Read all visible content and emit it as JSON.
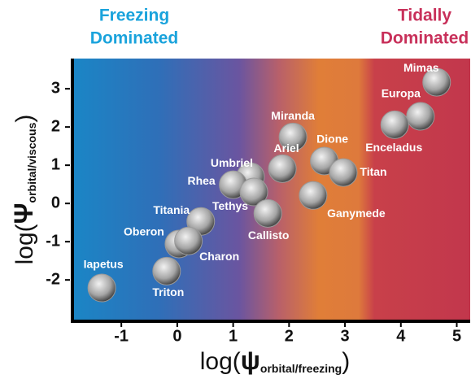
{
  "chart_data": {
    "type": "scatter",
    "annotations": [
      {
        "lines": [
          "Freezing",
          "Dominated"
        ],
        "color": "#1aa3dc"
      },
      {
        "lines": [
          "Tidally",
          "Dominated"
        ],
        "color": "#c8305a"
      }
    ],
    "x_label": {
      "prefix": "log(",
      "symbol": "ψ",
      "subscript": "orbital/freezing",
      "suffix": ")"
    },
    "y_label": {
      "prefix": "log(",
      "symbol": "Ψ",
      "subscript": "orbital/viscous",
      "suffix": ")"
    },
    "xlim": [
      -1.89,
      5.24
    ],
    "ylim": [
      -3.06,
      3.79
    ],
    "xticks": [
      -1,
      0,
      1,
      2,
      3,
      4,
      5
    ],
    "yticks": [
      -2,
      -1,
      0,
      1,
      2,
      3
    ],
    "color": "#9a9a9a",
    "points": [
      {
        "label": "Mimas",
        "x": 4.64,
        "y": 3.17
      },
      {
        "label": "Europa",
        "x": 4.35,
        "y": 2.28
      },
      {
        "label": "Enceladus",
        "x": 3.89,
        "y": 2.06
      },
      {
        "label": "Miranda",
        "x": 2.07,
        "y": 1.74
      },
      {
        "label": "Dione",
        "x": 2.63,
        "y": 1.11
      },
      {
        "label": "Titan",
        "x": 2.97,
        "y": 0.81
      },
      {
        "label": "Ariel",
        "x": 1.88,
        "y": 0.91
      },
      {
        "label": "Umbriel",
        "x": 1.31,
        "y": 0.7
      },
      {
        "label": "Rhea",
        "x": 1.0,
        "y": 0.49
      },
      {
        "label": "Tethys",
        "x": 1.37,
        "y": 0.3
      },
      {
        "label": "Callisto",
        "x": 1.62,
        "y": -0.26
      },
      {
        "label": "Ganymede",
        "x": 2.43,
        "y": 0.21
      },
      {
        "label": "Titania",
        "x": 0.42,
        "y": -0.47
      },
      {
        "label": "Oberon",
        "x": 0.03,
        "y": -1.06
      },
      {
        "label": "Charon",
        "x": 0.2,
        "y": -0.98
      },
      {
        "label": "Triton",
        "x": -0.19,
        "y": -1.77
      },
      {
        "label": "Iapetus",
        "x": -1.35,
        "y": -2.21
      }
    ]
  }
}
